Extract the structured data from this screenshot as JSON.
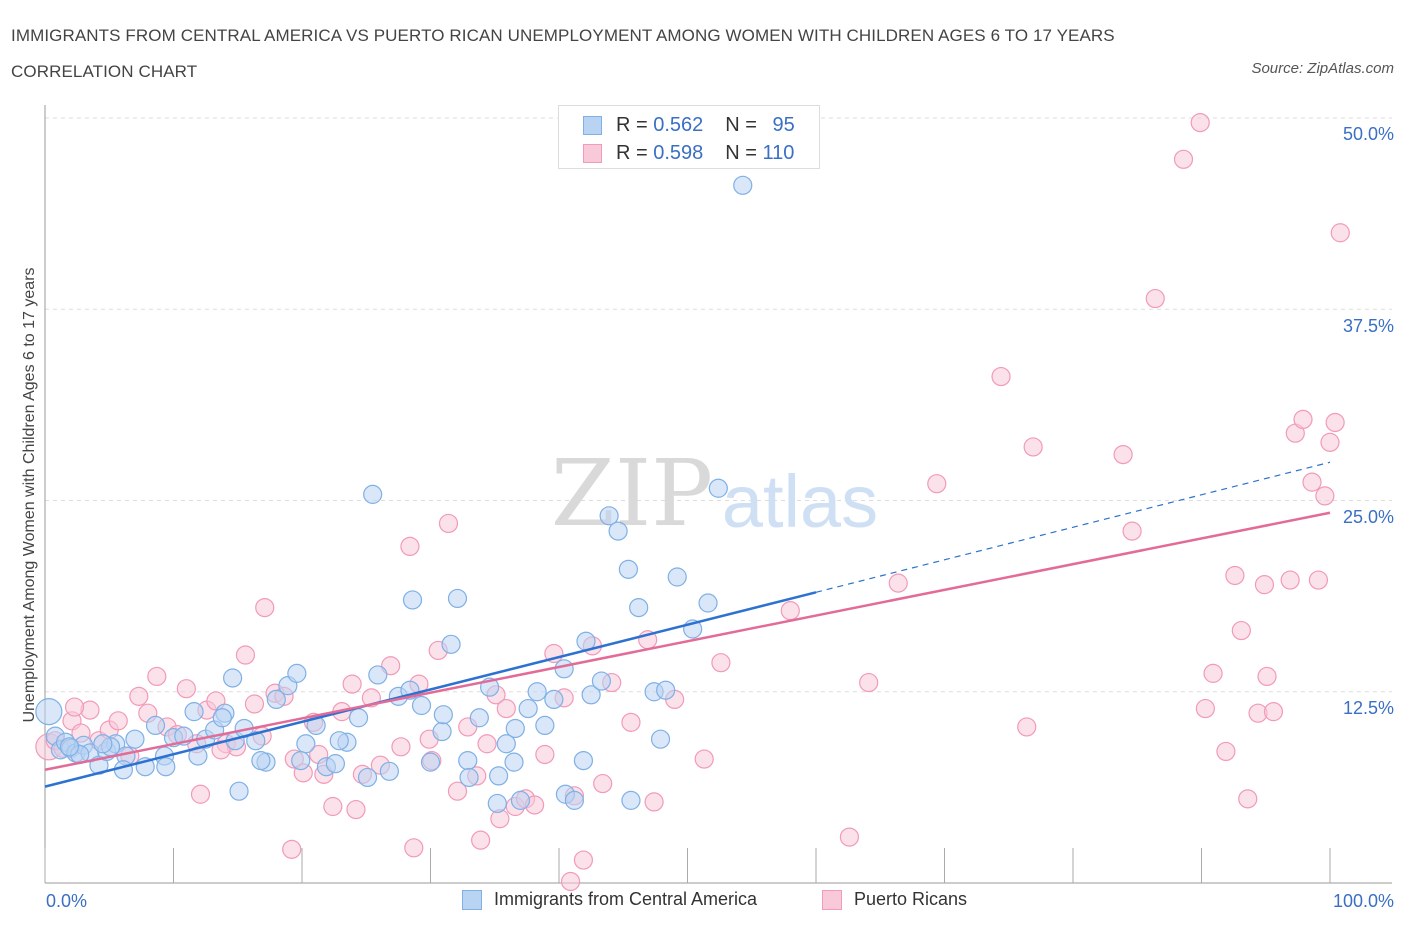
{
  "title": "IMMIGRANTS FROM CENTRAL AMERICA VS PUERTO RICAN UNEMPLOYMENT AMONG WOMEN WITH CHILDREN AGES 6 TO 17 YEARS CORRELATION CHART",
  "source": "Source: ZipAtlas.com",
  "watermark": {
    "zip": "ZIP",
    "atlas": "atlas"
  },
  "legend_top": [
    {
      "r_label": "R = ",
      "r_value": "0.562",
      "n_label": "N = ",
      "n_value": "95"
    },
    {
      "r_label": "R = ",
      "r_value": "0.598",
      "n_label": "N = ",
      "n_value": "110"
    }
  ],
  "colors": {
    "blue": "#7fb0e6",
    "blue_fill": "#b9d3f3",
    "blue_line": "#2d72d0",
    "pink": "#f29ab8",
    "pink_fill": "#f8c9d8",
    "pink_line": "#e26b98",
    "axis_text": "#3a6fc4",
    "grid": "#dddddd"
  },
  "chart_data": {
    "type": "scatter",
    "title": "IMMIGRANTS FROM CENTRAL AMERICA VS PUERTO RICAN UNEMPLOYMENT AMONG WOMEN WITH CHILDREN AGES 6 TO 17 YEARS CORRELATION CHART",
    "xlabel": "",
    "ylabel": "Unemployment Among Women with Children Ages 6 to 17 years",
    "xlim": [
      0,
      100
    ],
    "ylim": [
      0,
      50
    ],
    "x_tick_labels": [
      "0.0%",
      "100.0%"
    ],
    "y_tick_values": [
      12.5,
      25.0,
      37.5,
      50.0
    ],
    "y_tick_labels": [
      "12.5%",
      "25.0%",
      "37.5%",
      "50.0%"
    ],
    "grid": true,
    "legend_placement": "top-center and bottom",
    "series": [
      {
        "name": "Immigrants from Central America",
        "color": "#7fb0e6",
        "trend": {
          "x0": 0,
          "y0": 6.3,
          "x1": 60,
          "y1": 19.0,
          "dashed_to_x": 100,
          "dashed_to_y": 27.5
        },
        "points": [
          [
            0.3,
            11.2
          ],
          [
            0.8,
            9.6
          ],
          [
            1.2,
            8.7
          ],
          [
            1.6,
            9.2
          ],
          [
            2.0,
            8.8
          ],
          [
            2.4,
            8.5
          ],
          [
            3.0,
            9.0
          ],
          [
            3.5,
            8.5
          ],
          [
            4.2,
            7.7
          ],
          [
            4.8,
            8.6
          ],
          [
            5.5,
            9.1
          ],
          [
            6.3,
            8.3
          ],
          [
            7.0,
            9.4
          ],
          [
            7.8,
            7.6
          ],
          [
            8.6,
            10.3
          ],
          [
            9.3,
            8.3
          ],
          [
            10.0,
            9.5
          ],
          [
            10.8,
            9.6
          ],
          [
            11.6,
            11.2
          ],
          [
            12.5,
            9.4
          ],
          [
            13.2,
            10.0
          ],
          [
            14.0,
            11.1
          ],
          [
            14.8,
            9.3
          ],
          [
            15.5,
            10.1
          ],
          [
            16.4,
            9.3
          ],
          [
            17.2,
            7.9
          ],
          [
            18.0,
            12.0
          ],
          [
            18.9,
            12.9
          ],
          [
            19.6,
            13.7
          ],
          [
            20.3,
            9.1
          ],
          [
            21.1,
            10.3
          ],
          [
            21.9,
            7.6
          ],
          [
            22.6,
            7.8
          ],
          [
            23.5,
            9.2
          ],
          [
            24.4,
            10.8
          ],
          [
            25.1,
            6.9
          ],
          [
            25.9,
            13.6
          ],
          [
            26.8,
            7.3
          ],
          [
            27.5,
            12.2
          ],
          [
            28.4,
            12.6
          ],
          [
            29.3,
            11.6
          ],
          [
            30.0,
            7.9
          ],
          [
            30.9,
            9.9
          ],
          [
            31.6,
            15.6
          ],
          [
            32.1,
            18.6
          ],
          [
            32.9,
            8.0
          ],
          [
            33.8,
            10.8
          ],
          [
            34.6,
            12.8
          ],
          [
            35.3,
            7.0
          ],
          [
            35.9,
            9.1
          ],
          [
            36.6,
            10.1
          ],
          [
            37.6,
            11.4
          ],
          [
            38.3,
            12.5
          ],
          [
            38.9,
            10.3
          ],
          [
            39.6,
            12.0
          ],
          [
            40.5,
            5.8
          ],
          [
            41.2,
            5.4
          ],
          [
            41.9,
            8.0
          ],
          [
            42.5,
            12.3
          ],
          [
            43.3,
            13.2
          ],
          [
            43.9,
            24.0
          ],
          [
            44.6,
            23.0
          ],
          [
            45.4,
            20.5
          ],
          [
            46.2,
            18.0
          ],
          [
            47.4,
            12.5
          ],
          [
            48.3,
            12.6
          ],
          [
            49.2,
            20.0
          ],
          [
            50.4,
            16.6
          ],
          [
            51.6,
            18.3
          ],
          [
            52.4,
            25.8
          ],
          [
            54.3,
            45.6
          ],
          [
            25.5,
            25.4
          ],
          [
            28.6,
            18.5
          ],
          [
            35.2,
            5.2
          ],
          [
            37.0,
            5.4
          ],
          [
            36.5,
            7.9
          ],
          [
            40.4,
            14.0
          ],
          [
            42.1,
            15.8
          ],
          [
            47.9,
            9.4
          ],
          [
            45.6,
            5.4
          ],
          [
            16.8,
            8.0
          ],
          [
            15.1,
            6.0
          ],
          [
            13.8,
            10.8
          ],
          [
            11.9,
            8.3
          ],
          [
            9.4,
            7.6
          ],
          [
            6.1,
            7.4
          ],
          [
            5.1,
            8.9
          ],
          [
            4.5,
            9.1
          ],
          [
            2.7,
            8.4
          ],
          [
            1.9,
            8.9
          ],
          [
            14.6,
            13.4
          ],
          [
            19.9,
            8.0
          ],
          [
            22.9,
            9.3
          ],
          [
            31.0,
            11.0
          ],
          [
            33.0,
            6.9
          ]
        ]
      },
      {
        "name": "Puerto Ricans",
        "color": "#f29ab8",
        "trend": {
          "x0": 0,
          "y0": 7.4,
          "x1": 100,
          "y1": 24.2
        },
        "points": [
          [
            0.3,
            8.9
          ],
          [
            0.8,
            9.3
          ],
          [
            1.4,
            8.8
          ],
          [
            2.1,
            10.6
          ],
          [
            2.8,
            9.8
          ],
          [
            3.5,
            11.3
          ],
          [
            4.2,
            9.3
          ],
          [
            5.0,
            10.0
          ],
          [
            5.7,
            10.6
          ],
          [
            6.6,
            8.3
          ],
          [
            7.3,
            12.2
          ],
          [
            8.0,
            11.1
          ],
          [
            8.7,
            13.5
          ],
          [
            9.5,
            10.2
          ],
          [
            10.3,
            9.7
          ],
          [
            11.0,
            12.7
          ],
          [
            11.8,
            9.1
          ],
          [
            12.6,
            11.3
          ],
          [
            13.3,
            11.9
          ],
          [
            14.1,
            9.1
          ],
          [
            14.9,
            8.9
          ],
          [
            15.6,
            14.9
          ],
          [
            16.3,
            11.7
          ],
          [
            17.1,
            18.0
          ],
          [
            17.9,
            12.4
          ],
          [
            18.6,
            12.2
          ],
          [
            19.4,
            8.1
          ],
          [
            20.1,
            7.2
          ],
          [
            20.9,
            10.5
          ],
          [
            21.7,
            7.1
          ],
          [
            22.4,
            5.0
          ],
          [
            23.1,
            11.2
          ],
          [
            23.9,
            13.0
          ],
          [
            24.7,
            7.1
          ],
          [
            25.4,
            12.1
          ],
          [
            26.1,
            7.7
          ],
          [
            26.9,
            14.2
          ],
          [
            27.7,
            8.9
          ],
          [
            28.4,
            22.0
          ],
          [
            29.1,
            13.0
          ],
          [
            29.9,
            9.4
          ],
          [
            30.6,
            15.2
          ],
          [
            31.4,
            23.5
          ],
          [
            32.1,
            6.0
          ],
          [
            32.9,
            10.2
          ],
          [
            33.6,
            7.0
          ],
          [
            34.4,
            9.1
          ],
          [
            35.1,
            12.3
          ],
          [
            35.9,
            11.4
          ],
          [
            36.6,
            5.0
          ],
          [
            37.4,
            5.5
          ],
          [
            38.1,
            5.1
          ],
          [
            38.9,
            8.4
          ],
          [
            39.6,
            15.0
          ],
          [
            40.4,
            12.1
          ],
          [
            41.2,
            5.7
          ],
          [
            41.9,
            1.5
          ],
          [
            42.6,
            15.5
          ],
          [
            43.4,
            6.5
          ],
          [
            44.1,
            13.1
          ],
          [
            45.6,
            10.5
          ],
          [
            46.9,
            15.9
          ],
          [
            47.4,
            5.3
          ],
          [
            49.0,
            12.0
          ],
          [
            51.3,
            8.1
          ],
          [
            52.6,
            14.4
          ],
          [
            58.0,
            17.8
          ],
          [
            62.6,
            3.0
          ],
          [
            64.1,
            13.1
          ],
          [
            66.4,
            19.6
          ],
          [
            69.4,
            26.1
          ],
          [
            74.4,
            33.1
          ],
          [
            76.9,
            28.5
          ],
          [
            76.4,
            10.2
          ],
          [
            83.9,
            28.0
          ],
          [
            84.6,
            23.0
          ],
          [
            86.4,
            38.2
          ],
          [
            88.6,
            47.3
          ],
          [
            89.9,
            49.7
          ],
          [
            90.3,
            11.4
          ],
          [
            90.9,
            13.7
          ],
          [
            91.9,
            8.6
          ],
          [
            93.1,
            16.5
          ],
          [
            93.6,
            5.5
          ],
          [
            94.4,
            11.1
          ],
          [
            95.1,
            13.5
          ],
          [
            95.6,
            11.2
          ],
          [
            96.9,
            19.8
          ],
          [
            97.3,
            29.4
          ],
          [
            97.9,
            30.3
          ],
          [
            98.6,
            26.2
          ],
          [
            99.1,
            19.8
          ],
          [
            99.6,
            25.3
          ],
          [
            100.0,
            28.8
          ],
          [
            100.4,
            30.1
          ],
          [
            100.8,
            42.5
          ],
          [
            94.9,
            19.5
          ],
          [
            92.6,
            20.1
          ],
          [
            13.7,
            8.7
          ],
          [
            12.1,
            5.8
          ],
          [
            19.2,
            2.2
          ],
          [
            28.7,
            2.3
          ],
          [
            33.9,
            2.8
          ],
          [
            40.9,
            0.1
          ],
          [
            24.2,
            4.8
          ],
          [
            35.4,
            4.2
          ],
          [
            30.1,
            8.0
          ],
          [
            21.3,
            8.4
          ],
          [
            16.9,
            9.6
          ],
          [
            2.3,
            11.5
          ]
        ]
      }
    ]
  }
}
